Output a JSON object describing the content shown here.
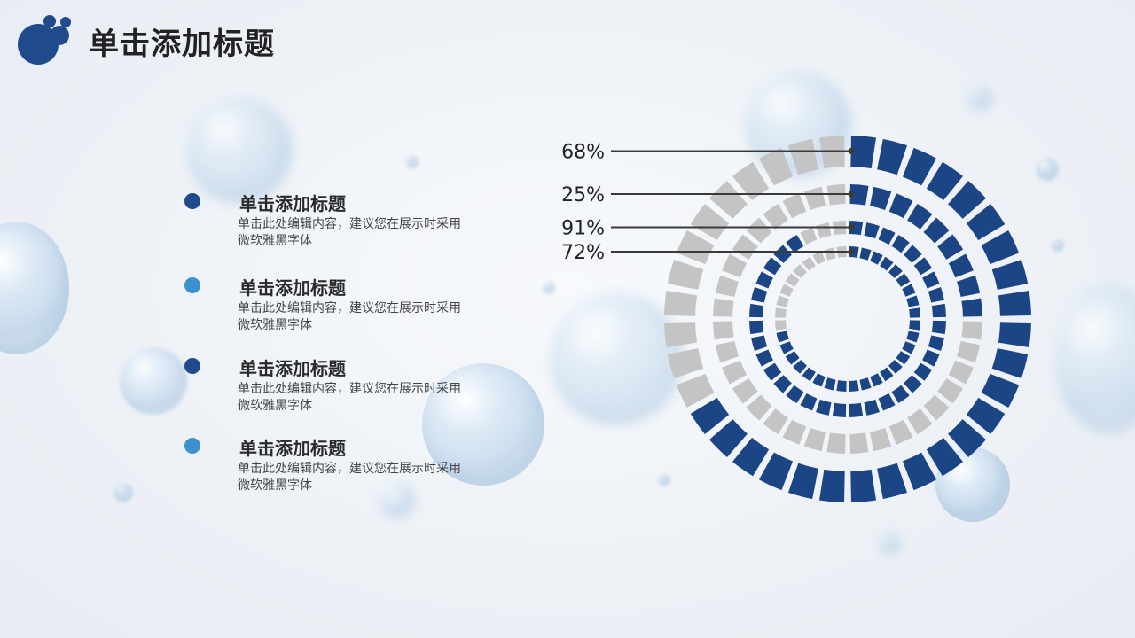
{
  "header": {
    "title": "单击添加标题"
  },
  "items": [
    {
      "title": "单击添加标题",
      "desc": "单击此处编辑内容，建议您在展示时采用微软雅黑字体",
      "color": "#1f4a8c"
    },
    {
      "title": "单击添加标题",
      "desc": "单击此处编辑内容，建议您在展示时采用微软雅黑字体",
      "color": "#3c92cf"
    },
    {
      "title": "单击添加标题",
      "desc": "单击此处编辑内容，建议您在展示时采用微软雅黑字体",
      "color": "#1f4a8c"
    },
    {
      "title": "单击添加标题",
      "desc": "单击此处编辑内容，建议您在展示时采用微软雅黑字体",
      "color": "#3c92cf"
    }
  ],
  "colors": {
    "filled": "#1b4585",
    "empty": "#c4c4c4",
    "leader": "#3a3a3a"
  },
  "chart_data": {
    "type": "radial-bar",
    "series": [
      {
        "label": "68%",
        "value": 68
      },
      {
        "label": "25%",
        "value": 25
      },
      {
        "label": "91%",
        "value": 91
      },
      {
        "label": "72%",
        "value": 72
      }
    ]
  }
}
